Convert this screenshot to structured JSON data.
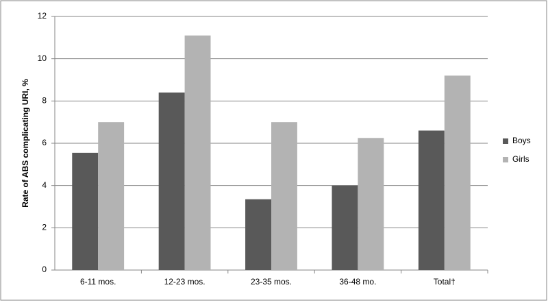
{
  "chart_data": {
    "type": "bar",
    "y_label": "Rate of ABS complicating URI, %",
    "categories": [
      "6-11 mos.",
      "12-23 mos.",
      "23-35 mos.",
      "36-48 mo.",
      "Total†"
    ],
    "series": [
      {
        "name": "Boys",
        "color": "#595959",
        "values": [
          5.55,
          8.4,
          3.35,
          4.0,
          6.6
        ]
      },
      {
        "name": "Girls",
        "color": "#b3b3b3",
        "values": [
          7.0,
          11.1,
          7.0,
          6.25,
          9.2
        ]
      }
    ],
    "ylim": [
      0,
      12
    ],
    "yticks": [
      0,
      2,
      4,
      6,
      8,
      10,
      12
    ],
    "grid": true,
    "legend": "right"
  }
}
